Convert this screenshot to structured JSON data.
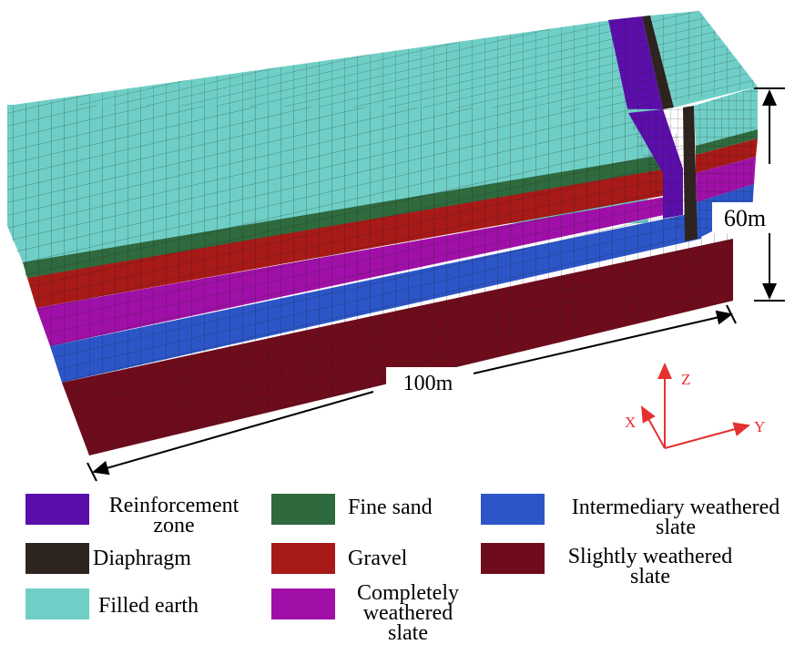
{
  "dimensions": {
    "height_label": "60m",
    "length_label": "100m"
  },
  "axes": {
    "x": "X",
    "y": "Y",
    "z": "Z",
    "color": "#e53030"
  },
  "materials": {
    "reinforcement": {
      "label": "Reinforcement\nzone",
      "color": "#5b0eaa"
    },
    "diaphragm": {
      "label": "Diaphragm",
      "color": "#2e2420"
    },
    "filled_earth": {
      "label": "Filled earth",
      "color": "#6fcfc7"
    },
    "fine_sand": {
      "label": "Fine sand",
      "color": "#2f6a3e"
    },
    "gravel": {
      "label": "Gravel",
      "color": "#a81a17"
    },
    "completely_weathered": {
      "label": "Completely\nweathered\nslate",
      "color": "#a010a8"
    },
    "intermediary_weathered": {
      "label": "Intermediary weathered\nslate",
      "color": "#2c56c8"
    },
    "slightly_weathered": {
      "label": "Slightly weathered\nslate",
      "color": "#6e0c1c"
    }
  }
}
